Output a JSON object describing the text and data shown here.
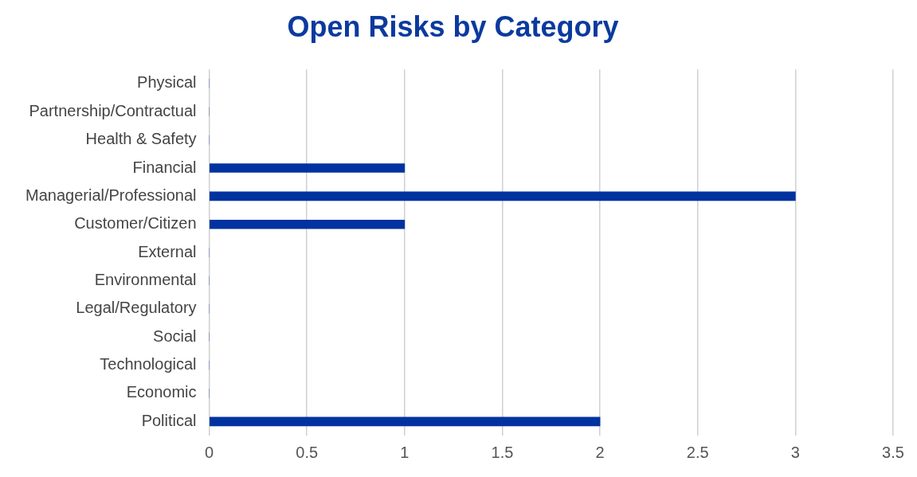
{
  "chart_data": {
    "type": "bar",
    "title": "Open Risks by Category",
    "orientation": "horizontal",
    "categories": [
      "Physical",
      "Partnership/Contractual",
      "Health & Safety",
      "Financial",
      "Managerial/Professional",
      "Customer/Citizen",
      "External",
      "Environmental",
      "Legal/Regulatory",
      "Social",
      "Technological",
      "Economic",
      "Political"
    ],
    "values": [
      0,
      0,
      0,
      1,
      3,
      1,
      0,
      0,
      0,
      0,
      0,
      0,
      2
    ],
    "color": "#0033a0",
    "xlim": [
      0,
      3.5
    ],
    "xticks": [
      0,
      0.5,
      1,
      1.5,
      2,
      2.5,
      3,
      3.5
    ],
    "grid": "x",
    "legend": false
  }
}
